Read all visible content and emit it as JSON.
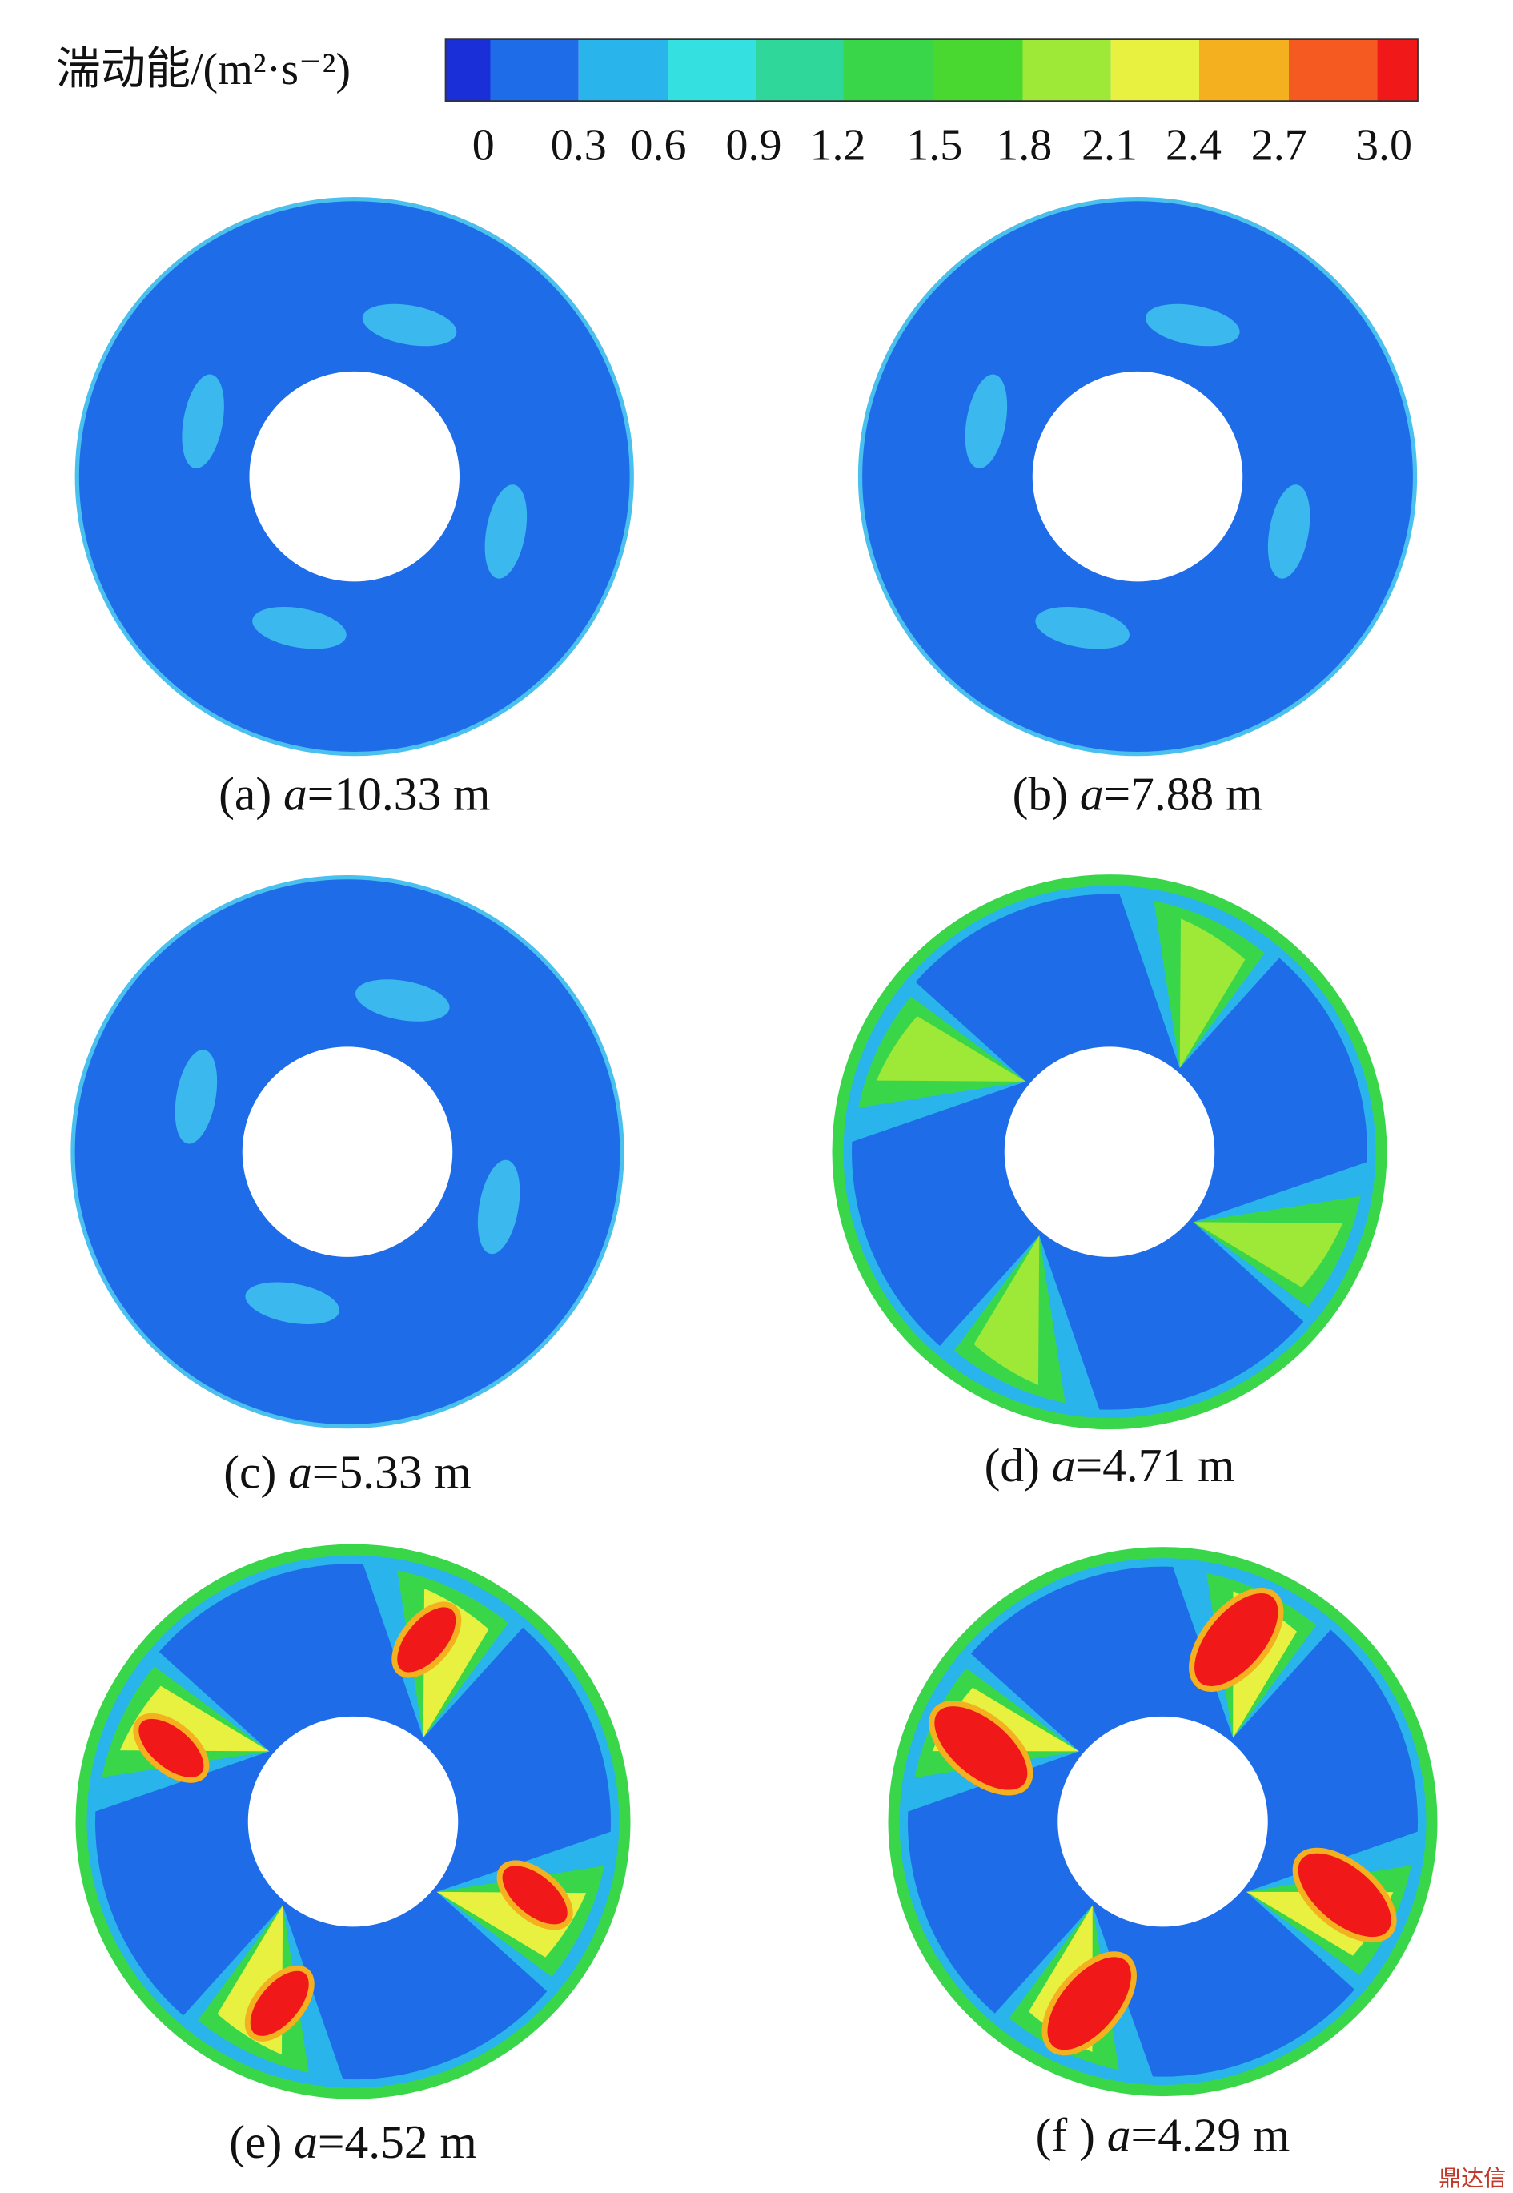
{
  "legend": {
    "title": "湍动能/(m²·s⁻²)",
    "ticks": [
      "0",
      "0.3",
      "0.6",
      "0.9",
      "1.2",
      "1.5",
      "1.8",
      "2.1",
      "2.4",
      "2.7",
      "3.0"
    ]
  },
  "panels": [
    {
      "prefix": "(a) ",
      "symbol": "a",
      "suffix": "=10.33 m"
    },
    {
      "prefix": "(b) ",
      "symbol": "a",
      "suffix": "=7.88 m"
    },
    {
      "prefix": "(c) ",
      "symbol": "a",
      "suffix": "=5.33 m"
    },
    {
      "prefix": "(d) ",
      "symbol": "a",
      "suffix": "=4.71 m"
    },
    {
      "prefix": "(e) ",
      "symbol": "a",
      "suffix": "=4.52 m"
    },
    {
      "prefix": "(f ) ",
      "symbol": "a",
      "suffix": "=4.29 m"
    }
  ],
  "watermark": "鼎达信"
}
